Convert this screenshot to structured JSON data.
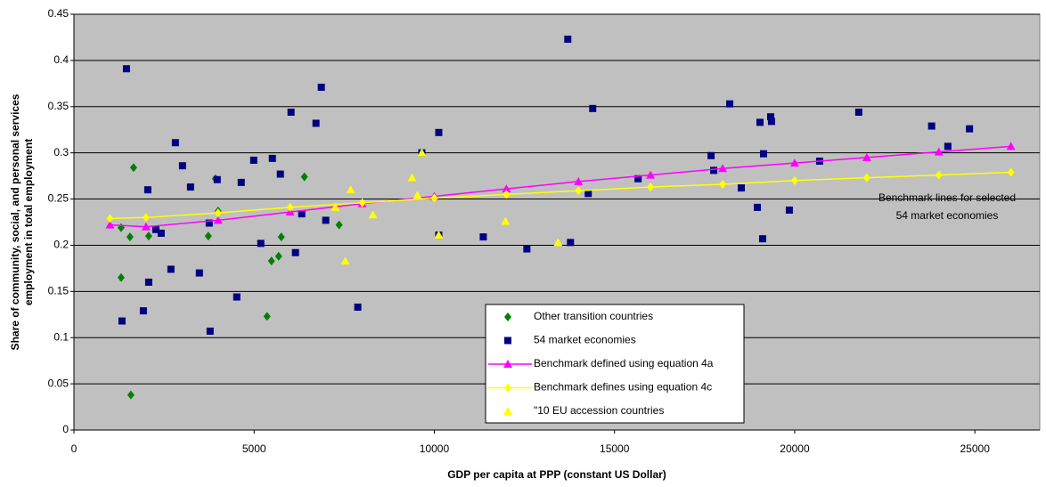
{
  "chart_data": {
    "type": "scatter",
    "x_label": "GDP per capita at PPP (constant US Dollar)",
    "y_label": [
      "Share of community, social, and personal services",
      "employment in total employment"
    ],
    "annotation": [
      "Benchmark lines for selected",
      "54 market economies"
    ],
    "xlim": [
      0,
      26800
    ],
    "ylim": [
      0,
      0.45
    ],
    "xticks": [
      0,
      5000,
      10000,
      15000,
      20000,
      25000
    ],
    "yticks": [
      0,
      0.05,
      0.1,
      0.15,
      0.2,
      0.25,
      0.3,
      0.35,
      0.4,
      0.45
    ],
    "grid": true,
    "background": "#c0c0c0",
    "legend": "lower-center",
    "series": [
      {
        "name": "Other transition countries",
        "color": "#008000",
        "marker": "diamond",
        "line": false,
        "x": [
          1309,
          1309,
          1654,
          1555,
          1580,
          2074,
          3728,
          3926,
          4000,
          5481,
          5679,
          5753,
          5358,
          6395,
          7358
        ],
        "values": [
          0.219,
          0.165,
          0.284,
          0.209,
          0.038,
          0.21,
          0.21,
          0.272,
          0.237,
          0.183,
          0.188,
          0.209,
          0.123,
          0.274,
          0.222
        ]
      },
      {
        "name": "54 market economies",
        "color": "#000080",
        "marker": "square",
        "line": false,
        "x": [
          1457,
          1333,
          2049,
          2074,
          1926,
          2272,
          2420,
          2691,
          2815,
          3012,
          3235,
          3481,
          3753,
          3778,
          3975,
          4642,
          4518,
          4988,
          5184,
          5506,
          5728,
          6024,
          6147,
          6321,
          6716,
          6864,
          6987,
          7876,
          9654,
          10123,
          10123,
          11358,
          12568,
          13704,
          13778,
          14395,
          14271,
          15654,
          17679,
          17753,
          18197,
          18518,
          18963,
          19036,
          19333,
          19357,
          19135,
          19110,
          19851,
          20691,
          21777,
          23800,
          24250,
          24850
        ],
        "values": [
          0.391,
          0.118,
          0.26,
          0.16,
          0.129,
          0.217,
          0.213,
          0.174,
          0.311,
          0.286,
          0.263,
          0.17,
          0.224,
          0.107,
          0.271,
          0.268,
          0.144,
          0.292,
          0.202,
          0.294,
          0.277,
          0.344,
          0.192,
          0.234,
          0.332,
          0.371,
          0.227,
          0.133,
          0.3,
          0.322,
          0.211,
          0.209,
          0.196,
          0.423,
          0.203,
          0.348,
          0.256,
          0.272,
          0.297,
          0.281,
          0.353,
          0.262,
          0.241,
          0.333,
          0.339,
          0.334,
          0.299,
          0.207,
          0.238,
          0.291,
          0.344,
          0.329,
          0.307,
          0.326
        ]
      },
      {
        "name": "Benchmark defined using equation 4a",
        "color": "#ff00ff",
        "marker": "triangle",
        "line": true,
        "x": [
          1000,
          2000,
          4000,
          6000,
          8000,
          10000,
          12000,
          14000,
          16000,
          18000,
          20000,
          22000,
          24000,
          26000
        ],
        "values": [
          0.222,
          0.22,
          0.227,
          0.236,
          0.245,
          0.253,
          0.261,
          0.269,
          0.276,
          0.283,
          0.289,
          0.295,
          0.301,
          0.307
        ]
      },
      {
        "name": "Benchmark defines using equation 4c",
        "color": "#ffff00",
        "marker": "diamond",
        "line": true,
        "x": [
          1000,
          2000,
          4000,
          6000,
          8000,
          10000,
          12000,
          14000,
          16000,
          18000,
          20000,
          22000,
          24000,
          26000
        ],
        "values": [
          0.229,
          0.23,
          0.235,
          0.241,
          0.246,
          0.251,
          0.255,
          0.259,
          0.263,
          0.266,
          0.27,
          0.273,
          0.276,
          0.279
        ]
      },
      {
        "name": "\"10 EU accession countries",
        "color": "#ffff00",
        "marker": "triangle",
        "line": false,
        "x": [
          7531,
          7679,
          8296,
          7250,
          9383,
          9654,
          9531,
          10123,
          11975,
          13432
        ],
        "values": [
          0.183,
          0.26,
          0.233,
          0.241,
          0.273,
          0.3,
          0.254,
          0.211,
          0.226,
          0.203
        ]
      }
    ]
  }
}
